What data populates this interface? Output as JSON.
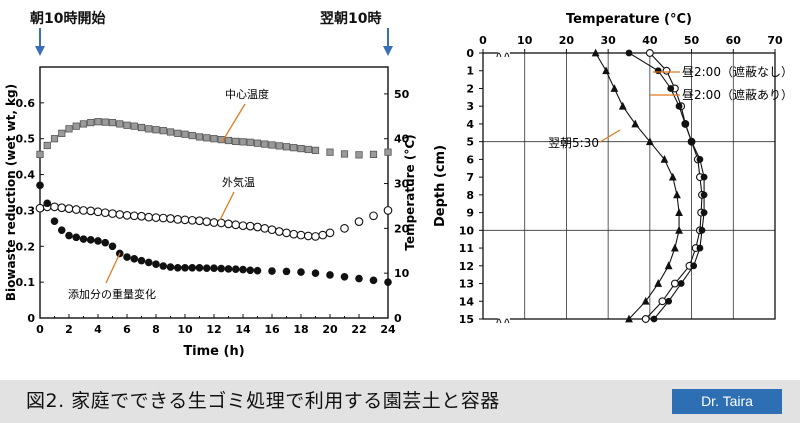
{
  "header": {
    "start_label": "朝10時開始",
    "end_label": "翌朝10時"
  },
  "footer": {
    "caption": "図2. 家庭でできる生ゴミ処理で利用する園芸土と容器",
    "author": "Dr. Taira"
  },
  "chart_data": [
    {
      "type": "scatter",
      "xlabel": "Time (h)",
      "ylabel": "Biowaste reduction (wet wt, kg)",
      "y2label": "Temperature (°C)",
      "xlim": [
        0,
        24
      ],
      "ylim": [
        0,
        0.7
      ],
      "y2lim": [
        0,
        56
      ],
      "xticks": [
        0,
        2,
        4,
        6,
        8,
        10,
        12,
        14,
        16,
        18,
        20,
        22,
        24
      ],
      "yticks": [
        0,
        0.1,
        0.2,
        0.3,
        0.4,
        0.5,
        0.6
      ],
      "y2ticks": [
        0,
        10,
        20,
        30,
        40,
        50
      ],
      "series": [
        {
          "name": "中心温度",
          "axis": "right",
          "marker": "square",
          "x": [
            0,
            0.5,
            1,
            1.5,
            2,
            2.5,
            3,
            3.5,
            4,
            4.5,
            5,
            5.5,
            6,
            6.5,
            7,
            7.5,
            8,
            8.5,
            9,
            9.5,
            10,
            10.5,
            11,
            11.5,
            12,
            12.5,
            13,
            13.5,
            14,
            14.5,
            15,
            15.5,
            16,
            16.5,
            17,
            17.5,
            18,
            18.5,
            19,
            20,
            21,
            22,
            23,
            24
          ],
          "values": [
            36.5,
            38.5,
            40.0,
            41.2,
            42.2,
            42.8,
            43.3,
            43.6,
            43.8,
            43.7,
            43.6,
            43.3,
            43.0,
            42.8,
            42.5,
            42.2,
            42.0,
            41.8,
            41.5,
            41.2,
            41.0,
            40.7,
            40.4,
            40.2,
            40.0,
            39.8,
            39.6,
            39.4,
            39.3,
            39.2,
            39.0,
            38.8,
            38.6,
            38.4,
            38.2,
            38.0,
            37.8,
            37.6,
            37.4,
            37.0,
            36.6,
            36.4,
            36.5,
            37.0
          ]
        },
        {
          "name": "外気温",
          "axis": "right",
          "marker": "open-circle",
          "x": [
            0,
            0.5,
            1,
            1.5,
            2,
            2.5,
            3,
            3.5,
            4,
            4.5,
            5,
            5.5,
            6,
            6.5,
            7,
            7.5,
            8,
            8.5,
            9,
            9.5,
            10,
            10.5,
            11,
            11.5,
            12,
            12.5,
            13,
            13.5,
            14,
            14.5,
            15,
            15.5,
            16,
            16.5,
            17,
            17.5,
            18,
            18.5,
            19,
            19.5,
            20,
            21,
            22,
            23,
            24
          ],
          "values": [
            24.5,
            24.8,
            24.8,
            24.6,
            24.4,
            24.2,
            24.0,
            23.9,
            23.7,
            23.5,
            23.3,
            23.1,
            22.9,
            22.8,
            22.7,
            22.5,
            22.4,
            22.3,
            22.2,
            22.0,
            21.9,
            21.8,
            21.7,
            21.5,
            21.3,
            21.2,
            21.0,
            20.8,
            20.6,
            20.5,
            20.3,
            20.0,
            19.7,
            19.3,
            19.0,
            18.7,
            18.5,
            18.3,
            18.2,
            18.5,
            19.0,
            20.0,
            21.5,
            22.8,
            24.0
          ]
        },
        {
          "name": "添加分の重量変化",
          "axis": "left",
          "marker": "filled-circle",
          "x": [
            0,
            0.5,
            1,
            1.5,
            2,
            2.5,
            3,
            3.5,
            4,
            4.5,
            5,
            5.5,
            6,
            6.5,
            7,
            7.5,
            8,
            8.5,
            9,
            9.5,
            10,
            10.5,
            11,
            11.5,
            12,
            12.5,
            13,
            13.5,
            14,
            14.5,
            15,
            16,
            17,
            18,
            19,
            20,
            21,
            22,
            23,
            24
          ],
          "values": [
            0.37,
            0.32,
            0.27,
            0.245,
            0.23,
            0.225,
            0.22,
            0.218,
            0.215,
            0.21,
            0.2,
            0.18,
            0.17,
            0.165,
            0.16,
            0.155,
            0.15,
            0.145,
            0.142,
            0.14,
            0.14,
            0.14,
            0.14,
            0.139,
            0.139,
            0.138,
            0.137,
            0.136,
            0.135,
            0.133,
            0.132,
            0.131,
            0.13,
            0.128,
            0.125,
            0.12,
            0.115,
            0.11,
            0.105,
            0.1
          ]
        }
      ],
      "annotations": [
        "中心温度",
        "外気温",
        "添加分の重量変化"
      ]
    },
    {
      "type": "line",
      "xlabel": "Temperature (°C)",
      "ylabel": "Depth (cm)",
      "xlim": [
        0,
        70
      ],
      "ylim": [
        0,
        15
      ],
      "y_inverted": true,
      "xticks": [
        0,
        10,
        20,
        30,
        40,
        50,
        60,
        70
      ],
      "yticks": [
        0,
        1,
        2,
        3,
        4,
        5,
        6,
        7,
        8,
        9,
        10,
        11,
        12,
        13,
        14,
        15
      ],
      "grid": "x every 10, y at 5 and 10",
      "depth": [
        0,
        1,
        2,
        3,
        4,
        5,
        6,
        7,
        8,
        9,
        10,
        11,
        12,
        13,
        14,
        15
      ],
      "series": [
        {
          "name": "昼2:00（遮蔽なし）",
          "marker": "open-circle",
          "values": [
            40,
            44,
            46,
            47.5,
            48.5,
            50,
            51.5,
            52,
            52.5,
            52.3,
            52,
            51,
            49.5,
            46,
            43,
            39
          ]
        },
        {
          "name": "昼2:00（遮蔽あり）",
          "marker": "filled-circle",
          "values": [
            35,
            42,
            45,
            47,
            48.5,
            50,
            52,
            53,
            53,
            53,
            52.5,
            52,
            50.5,
            47.5,
            44.5,
            41
          ]
        },
        {
          "name": "翌朝5:30",
          "marker": "filled-triangle",
          "values": [
            27,
            29.5,
            31.5,
            33.5,
            36.5,
            40,
            43.5,
            45.5,
            46.5,
            47,
            47,
            46,
            44.5,
            42,
            39,
            35
          ]
        }
      ],
      "annotations": [
        "昼2:00（遮蔽なし）",
        "昼2:00（遮蔽あり）",
        "翌朝5:30"
      ]
    }
  ]
}
